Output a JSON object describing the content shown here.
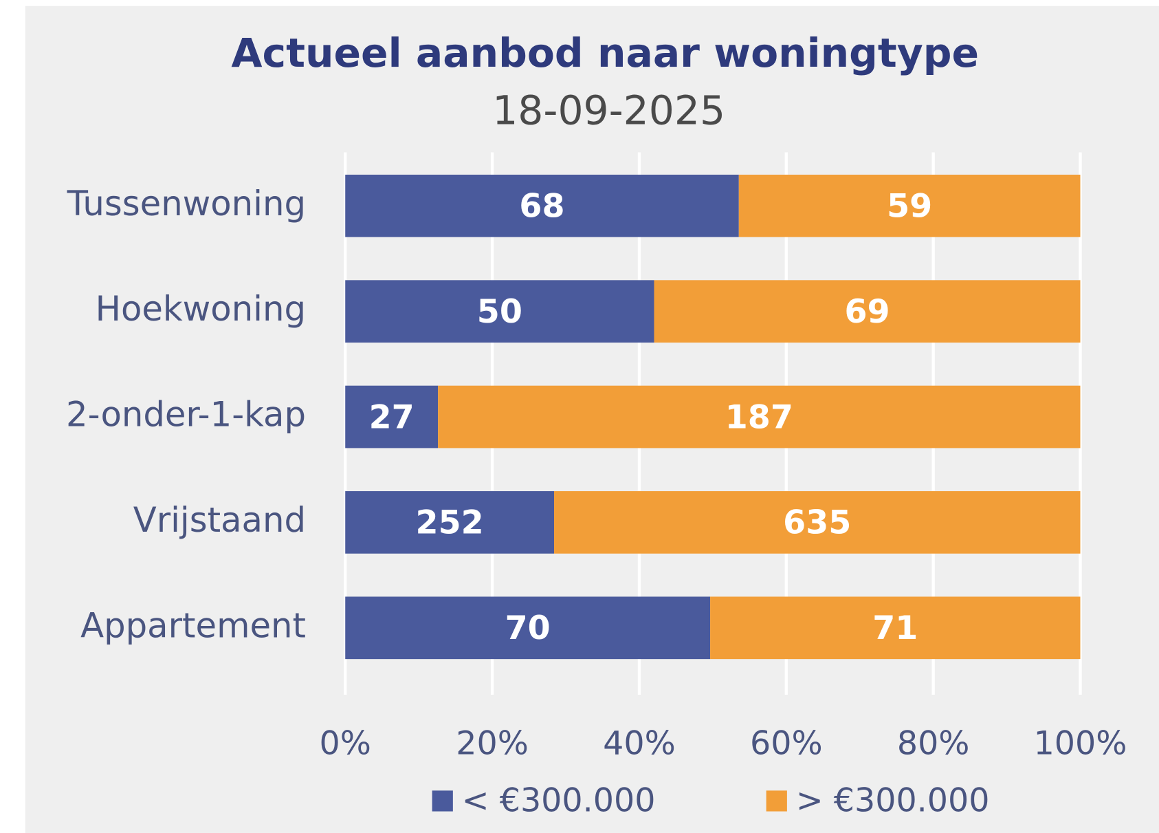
{
  "chart_data": {
    "type": "bar",
    "orientation": "horizontal",
    "stacked": "percent",
    "title": "Actueel aanbod naar woningtype",
    "subtitle": "18-09-2025",
    "categories": [
      "Tussenwoning",
      "Hoekwoning",
      "2-onder-1-kap",
      "Vrijstaand",
      "Appartement"
    ],
    "series": [
      {
        "name": "< €300.000",
        "color": "#4a5a9c",
        "values": [
          68,
          50,
          27,
          252,
          70
        ]
      },
      {
        "name": "> €300.000",
        "color": "#f29e38",
        "values": [
          59,
          69,
          187,
          635,
          71
        ]
      }
    ],
    "xlim": [
      0,
      100
    ],
    "xticks": [
      {
        "value": 0,
        "label": "0%"
      },
      {
        "value": 20,
        "label": "20%"
      },
      {
        "value": 40,
        "label": "40%"
      },
      {
        "value": 60,
        "label": "60%"
      },
      {
        "value": 80,
        "label": "80%"
      },
      {
        "value": 100,
        "label": "100%"
      }
    ],
    "grid": true,
    "legend": "bottom"
  }
}
